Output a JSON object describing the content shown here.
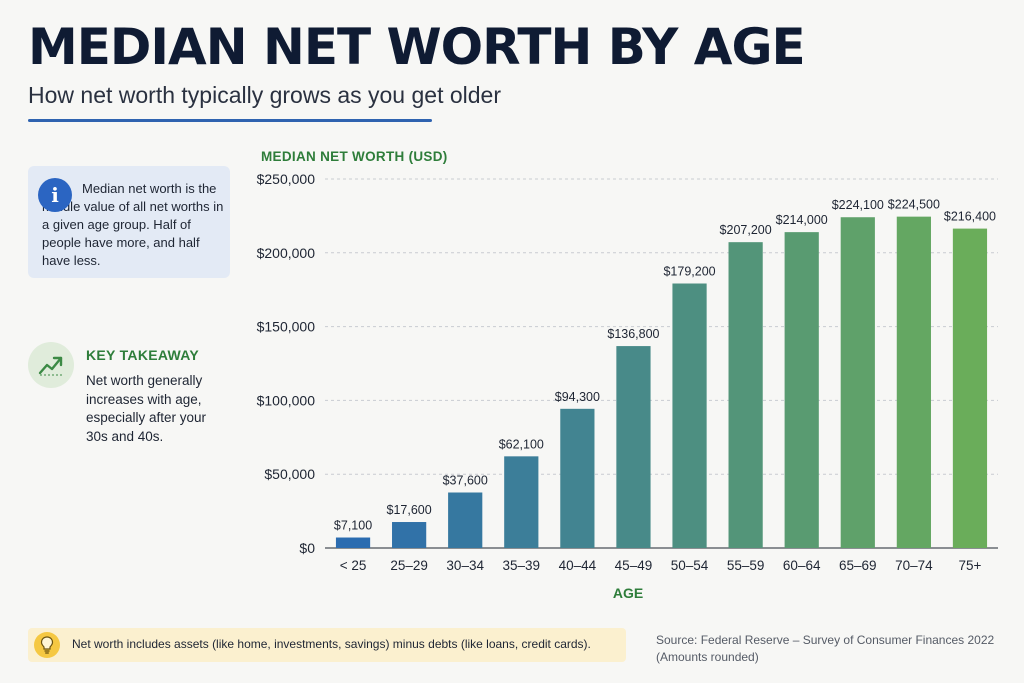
{
  "title": "MEDIAN NET WORTH BY AGE",
  "subtitle": "How net worth typically grows as you get older",
  "info_box": {
    "icon": "info-icon",
    "text": "Median net worth is the middle value of all net worths in a given age group. Half of people have more, and half have less."
  },
  "takeaway": {
    "icon": "trend-up-icon",
    "title": "KEY TAKEAWAY",
    "text": "Net worth generally increases with age, especially after your 30s and 40s."
  },
  "note": {
    "icon": "lightbulb-icon",
    "text": "Net worth includes assets (like home, investments, savings) minus debts (like loans, credit cards)."
  },
  "source": {
    "line1": "Source: Federal Reserve – Survey of Consumer Finances 2022",
    "line2": "(Amounts rounded)"
  },
  "colors": {
    "title": "#0f1b33",
    "accent_blue": "#2f63b0",
    "accent_green": "#2e7d3a",
    "bar_start": "#2b6cb0",
    "bar_end": "#6aad5a"
  },
  "chart_data": {
    "type": "bar",
    "ylabel": "MEDIAN NET WORTH (USD)",
    "xlabel": "AGE",
    "ylim": [
      0,
      250000
    ],
    "yticks": [
      0,
      50000,
      100000,
      150000,
      200000,
      250000
    ],
    "ytick_labels": [
      "$0",
      "$50,000",
      "$100,000",
      "$150,000",
      "$200,000",
      "$250,000"
    ],
    "grid": true,
    "categories": [
      "< 25",
      "25–29",
      "30–34",
      "35–39",
      "40–44",
      "45–49",
      "50–54",
      "55–59",
      "60–64",
      "65–69",
      "70–74",
      "75+"
    ],
    "values": [
      7100,
      17600,
      37600,
      62100,
      94300,
      136800,
      179200,
      207200,
      214000,
      224100,
      224500,
      216400
    ],
    "value_labels": [
      "$7,100",
      "$17,600",
      "$37,600",
      "$62,100",
      "$94,300",
      "$136,800",
      "$179,200",
      "$207,200",
      "$214,000",
      "$224,100",
      "$224,500",
      "$216,400"
    ]
  }
}
